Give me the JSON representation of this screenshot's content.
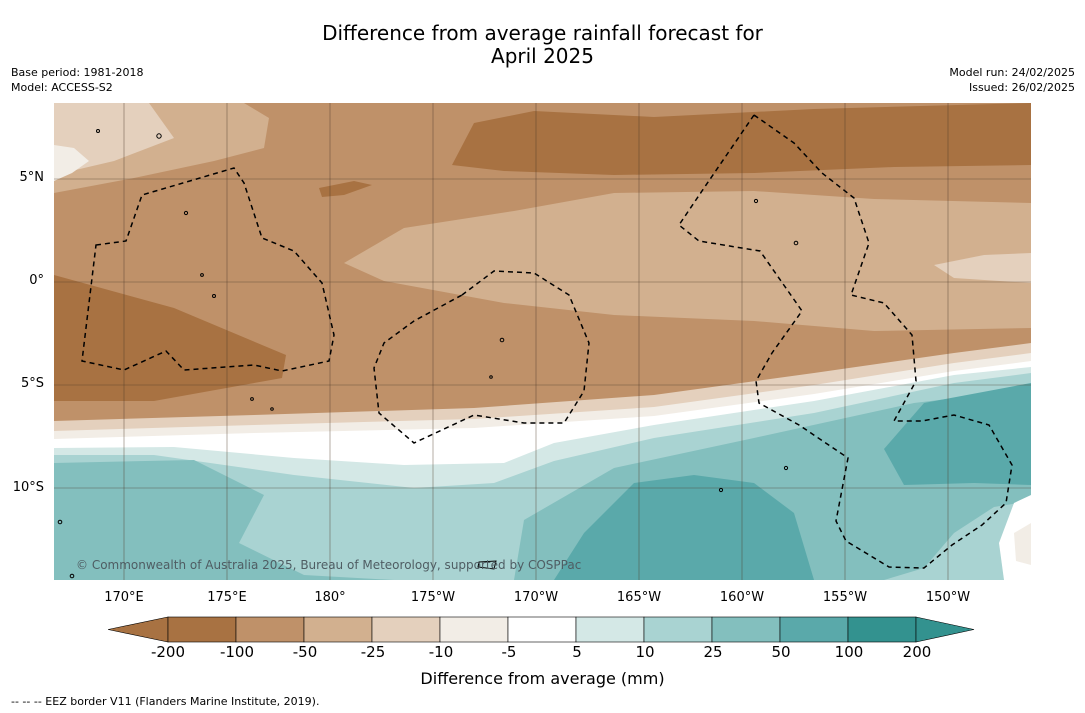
{
  "title_line1": "Difference from average rainfall forecast for",
  "title_line2": "April 2025",
  "meta_left": {
    "base_period": "Base period: 1981-2018",
    "model": "Model: ACCESS-S2"
  },
  "meta_right": {
    "model_run": "Model run: 24/02/2025",
    "issued": "Issued: 26/02/2025"
  },
  "map": {
    "lat_ticks": [
      "5°N",
      "0°",
      "5°S",
      "10°S"
    ],
    "lon_ticks": [
      "170°E",
      "175°E",
      "180°",
      "175°W",
      "170°W",
      "165°W",
      "160°W",
      "155°W",
      "150°W"
    ],
    "copyright": "© Commonwealth of Australia 2025, Bureau of Meteorology, supported by COSPPac"
  },
  "colorbar": {
    "ticks": [
      "-200",
      "-100",
      "-50",
      "-25",
      "-10",
      "-5",
      "5",
      "10",
      "25",
      "50",
      "100",
      "200"
    ],
    "colors": [
      "#a87242",
      "#a87242",
      "#bf9169",
      "#d2b08f",
      "#e4d0bd",
      "#f2ede6",
      "#ffffff",
      "#d4e8e6",
      "#a9d3d2",
      "#83bfbe",
      "#5aa9aa",
      "#33928f",
      "#33928f"
    ],
    "label": "Difference from average (mm)"
  },
  "footer": "--  --  -- EEZ border V11 (Flanders Marine Institute, 2019)."
}
